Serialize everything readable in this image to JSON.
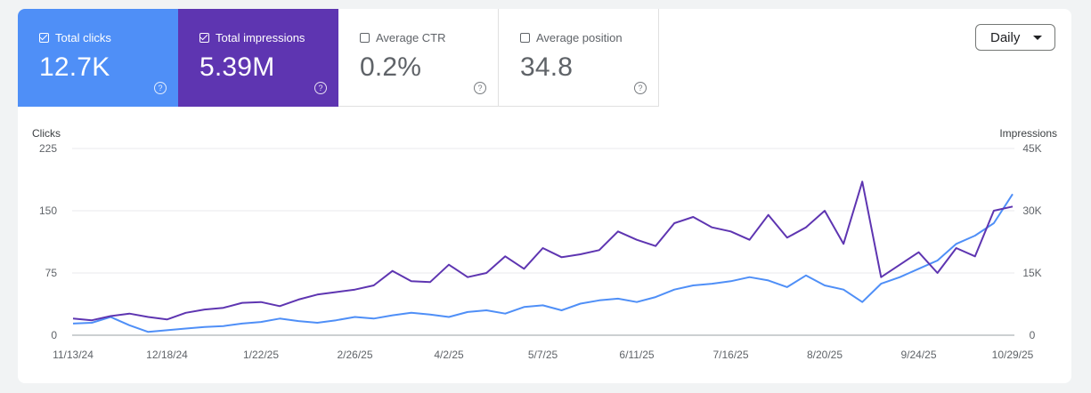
{
  "metrics": [
    {
      "label": "Total clicks",
      "value": "12.7K",
      "checked": true
    },
    {
      "label": "Total impressions",
      "value": "5.39M",
      "checked": true
    },
    {
      "label": "Average CTR",
      "value": "0.2%",
      "checked": false
    },
    {
      "label": "Average position",
      "value": "34.8",
      "checked": false
    }
  ],
  "help_glyph": "?",
  "period_select": {
    "value": "Daily"
  },
  "colors": {
    "clicks": "#4f8ff7",
    "impressions": "#5e35b1",
    "grid": "#e8eaed"
  },
  "icons": {
    "help": "help-circle-icon",
    "checkbox": "checkbox-icon",
    "dropdown": "caret-down-icon"
  },
  "chart_data": {
    "type": "line",
    "x_start": "11/13/24",
    "x_ticks": [
      "11/13/24",
      "12/18/24",
      "1/22/25",
      "2/26/25",
      "4/2/25",
      "5/7/25",
      "6/11/25",
      "7/16/25",
      "8/20/25",
      "9/24/25",
      "10/29/25"
    ],
    "left_axis": {
      "label": "Clicks",
      "ticks": [
        "225",
        "150",
        "75",
        "0"
      ],
      "ylim": [
        0,
        225
      ]
    },
    "right_axis": {
      "label": "Impressions",
      "ticks": [
        "45K",
        "30K",
        "15K",
        "0"
      ],
      "ylim": [
        0,
        45000
      ]
    },
    "grid": true,
    "series": [
      {
        "name": "Total clicks",
        "axis": "left",
        "color": "#4f8ff7",
        "sample_interval_days": 7,
        "values": [
          14,
          15,
          22,
          12,
          4,
          6,
          8,
          10,
          11,
          14,
          16,
          20,
          17,
          15,
          18,
          22,
          20,
          24,
          27,
          25,
          22,
          28,
          30,
          26,
          34,
          36,
          30,
          38,
          42,
          44,
          40,
          46,
          55,
          60,
          62,
          65,
          70,
          66,
          58,
          72,
          60,
          55,
          40,
          62,
          70,
          80,
          90,
          110,
          120,
          135,
          170
        ]
      },
      {
        "name": "Total impressions",
        "axis": "right",
        "color": "#5e35b1",
        "sample_interval_days": 7,
        "values": [
          4000,
          3600,
          4600,
          5200,
          4400,
          3800,
          5400,
          6200,
          6600,
          7800,
          8000,
          7000,
          8600,
          9800,
          10400,
          11000,
          12000,
          15500,
          13000,
          12800,
          17000,
          14000,
          15000,
          19000,
          16000,
          21000,
          18800,
          19500,
          20500,
          25000,
          23000,
          21500,
          27000,
          28500,
          26000,
          25000,
          23000,
          29000,
          23500,
          26000,
          30000,
          22000,
          37000,
          14000,
          17000,
          20000,
          15000,
          21000,
          19000,
          30000,
          31000
        ]
      }
    ]
  }
}
